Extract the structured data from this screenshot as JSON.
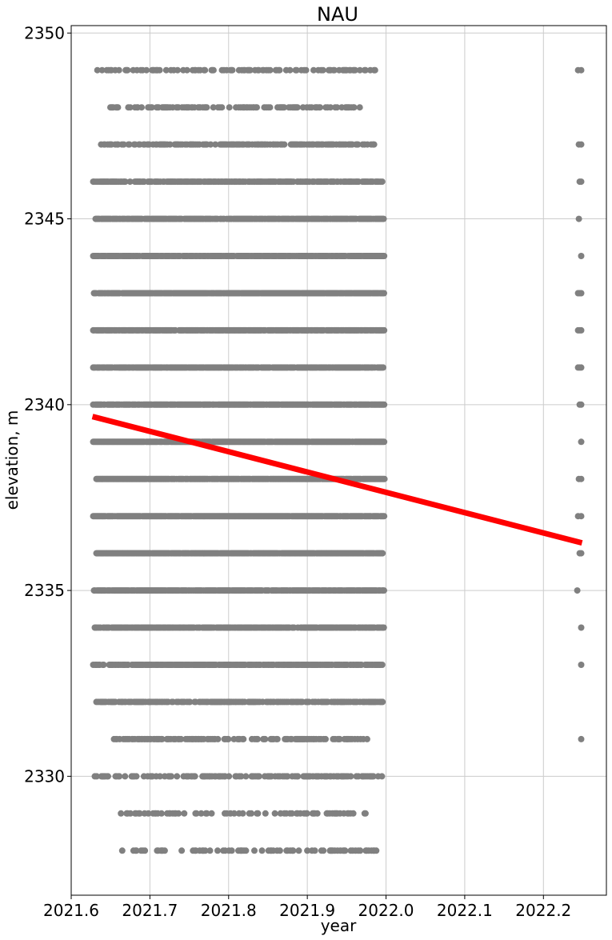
{
  "chart_data": {
    "type": "scatter",
    "title": "NAU",
    "xlabel": "year",
    "ylabel": "elevation, m",
    "xlim": [
      2021.6,
      2022.28
    ],
    "ylim": [
      2326.8,
      2350.2
    ],
    "x_ticks": [
      2021.6,
      2021.7,
      2021.8,
      2021.9,
      2022.0,
      2022.1,
      2022.2
    ],
    "x_tick_labels": [
      "2021.6",
      "2021.7",
      "2021.8",
      "2021.9",
      "2022.0",
      "2022.1",
      "2022.2"
    ],
    "y_ticks": [
      2330,
      2335,
      2340,
      2345,
      2350
    ],
    "y_tick_labels": [
      "2330",
      "2335",
      "2340",
      "2345",
      "2350"
    ],
    "grid": true,
    "colors": {
      "points": "#808080",
      "trend": "#ff0000",
      "grid": "#cccccc"
    },
    "series": [
      {
        "kind": "points",
        "rows": [
          {
            "y": 2349,
            "x_min": 2021.632,
            "x_max": 2021.99,
            "density": 0.35,
            "late": [
              2022.244,
              2022.248
            ]
          },
          {
            "y": 2348,
            "x_min": 2021.639,
            "x_max": 2021.967,
            "density": 0.4,
            "late": []
          },
          {
            "y": 2347,
            "x_min": 2021.638,
            "x_max": 2021.985,
            "density": 0.55,
            "late": [
              2022.245,
              2022.248
            ]
          },
          {
            "y": 2346,
            "x_min": 2021.628,
            "x_max": 2021.996,
            "density": 0.7,
            "late": [
              2022.246,
              2022.248
            ]
          },
          {
            "y": 2345,
            "x_min": 2021.631,
            "x_max": 2021.998,
            "density": 0.85,
            "late": [
              2022.245
            ]
          },
          {
            "y": 2344,
            "x_min": 2021.628,
            "x_max": 2021.998,
            "density": 0.85,
            "late": [
              2022.248
            ]
          },
          {
            "y": 2343,
            "x_min": 2021.629,
            "x_max": 2021.998,
            "density": 0.9,
            "late": [
              2022.244,
              2022.246,
              2022.248
            ]
          },
          {
            "y": 2342,
            "x_min": 2021.628,
            "x_max": 2021.998,
            "density": 0.9,
            "late": [
              2022.244,
              2022.246,
              2022.248
            ]
          },
          {
            "y": 2341,
            "x_min": 2021.628,
            "x_max": 2021.998,
            "density": 0.9,
            "late": [
              2022.244,
              2022.246,
              2022.248
            ]
          },
          {
            "y": 2340,
            "x_min": 2021.628,
            "x_max": 2021.998,
            "density": 0.92,
            "late": [
              2022.246,
              2022.248
            ]
          },
          {
            "y": 2339,
            "x_min": 2021.628,
            "x_max": 2021.998,
            "density": 0.95,
            "late": [
              2022.248
            ]
          },
          {
            "y": 2338,
            "x_min": 2021.632,
            "x_max": 2021.998,
            "density": 0.97,
            "late": [
              2022.245,
              2022.248
            ]
          },
          {
            "y": 2337,
            "x_min": 2021.628,
            "x_max": 2021.998,
            "density": 0.95,
            "late": [
              2022.244,
              2022.248
            ]
          },
          {
            "y": 2336,
            "x_min": 2021.632,
            "x_max": 2021.998,
            "density": 0.95,
            "late": [
              2022.246,
              2022.248
            ]
          },
          {
            "y": 2335,
            "x_min": 2021.629,
            "x_max": 2021.998,
            "density": 0.85,
            "late": [
              2022.243
            ]
          },
          {
            "y": 2334,
            "x_min": 2021.63,
            "x_max": 2021.998,
            "density": 0.8,
            "late": [
              2022.248
            ]
          },
          {
            "y": 2333,
            "x_min": 2021.628,
            "x_max": 2021.996,
            "density": 0.75,
            "late": [
              2022.248
            ]
          },
          {
            "y": 2332,
            "x_min": 2021.632,
            "x_max": 2021.996,
            "density": 0.65,
            "late": []
          },
          {
            "y": 2331,
            "x_min": 2021.652,
            "x_max": 2021.978,
            "density": 0.45,
            "late": [
              2022.248
            ]
          },
          {
            "y": 2330,
            "x_min": 2021.63,
            "x_max": 2021.996,
            "density": 0.4,
            "late": []
          },
          {
            "y": 2329,
            "x_min": 2021.662,
            "x_max": 2021.985,
            "density": 0.25,
            "late": []
          },
          {
            "y": 2328,
            "x_min": 2021.654,
            "x_max": 2021.99,
            "density": 0.25,
            "late": []
          }
        ]
      },
      {
        "kind": "trend_line",
        "x": [
          2021.627,
          2022.249
        ],
        "y": [
          2339.68,
          2336.28
        ]
      }
    ]
  }
}
